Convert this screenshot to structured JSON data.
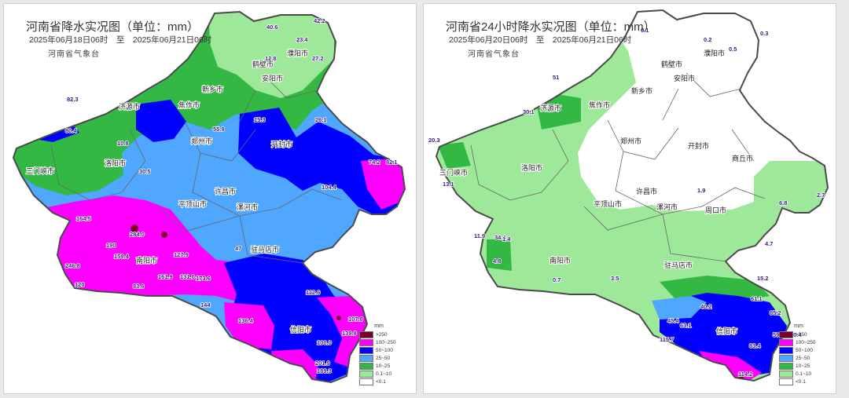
{
  "maps": [
    {
      "title": "河南省降水实况图（单位：mm）",
      "date_range": "2025年06月18日06时　至　2025年06月21日06时",
      "agency": "河南省气象台",
      "legend": {
        "unit": "mm",
        "labels": [
          ">250",
          "100~250",
          "50~100",
          "25~50",
          "10~25",
          "0.1~10",
          "<0.1"
        ],
        "colors": [
          "#7b0032",
          "#ff00ff",
          "#0000ff",
          "#4fa7ff",
          "#33b843",
          "#9ee89a",
          "#ffffff"
        ]
      },
      "cities": [
        "三门峡市",
        "洛阳市",
        "济源市",
        "焦作市",
        "新乡市",
        "安阳市",
        "鹤壁市",
        "濮阳市",
        "开封市",
        "郑州市",
        "许昌市",
        "平顶山市",
        "漯河市",
        "南阳市",
        "驻马店市",
        "信阳市"
      ],
      "values": [
        "42.2",
        "40.6",
        "23.4",
        "12.8",
        "27.2",
        "55.9",
        "82.3",
        "80.4",
        "10.8",
        "30.5",
        "74.2",
        "82.1",
        "26.1",
        "15.3",
        "104.4",
        "164.5",
        "284.0",
        "190",
        "159.4",
        "127.9",
        "161.9",
        "131.0",
        "173.6",
        "246.8",
        "120",
        "144",
        "136.4",
        "107.8",
        "139.8",
        "100.0",
        "201.9",
        "189.3",
        "112.6",
        "83.6",
        "47"
      ]
    },
    {
      "title": "河南省24小时降水实况图（单位：mm）",
      "date_range": "2025年06月20日06时　至　2025年06月21日06时",
      "agency": "河南省气象台",
      "legend": {
        "unit": "mm",
        "labels": [
          ">250",
          "100~250",
          "50~100",
          "25~50",
          "10~25",
          "0.1~10",
          "<0.1"
        ],
        "colors": [
          "#7b0032",
          "#ff00ff",
          "#0000ff",
          "#4fa7ff",
          "#33b843",
          "#9ee89a",
          "#ffffff"
        ]
      },
      "cities": [
        "安阳市",
        "鹤壁市",
        "濮阳市",
        "新乡市",
        "焦作市",
        "济源市",
        "三门峡市",
        "洛阳市",
        "郑州市",
        "开封市",
        "商丘市",
        "许昌市",
        "平顶山市",
        "漯河市",
        "周口市",
        "南阳市",
        "驻马店市",
        "信阳市"
      ],
      "values": [
        "0.1",
        "0.2",
        "0.5",
        "0.3",
        "51",
        "30.1",
        "20.3",
        "13.1",
        "11.9",
        "34.4",
        "1.4",
        "4.8",
        "0.7",
        "3.5",
        "1.9",
        "4.7",
        "6.8",
        "2.7",
        "15.2",
        "40.2",
        "45.4",
        "63.1",
        "83.4",
        "85.2",
        "114.2",
        "59.1",
        "61.1",
        "115.7",
        "20.4"
      ]
    }
  ]
}
